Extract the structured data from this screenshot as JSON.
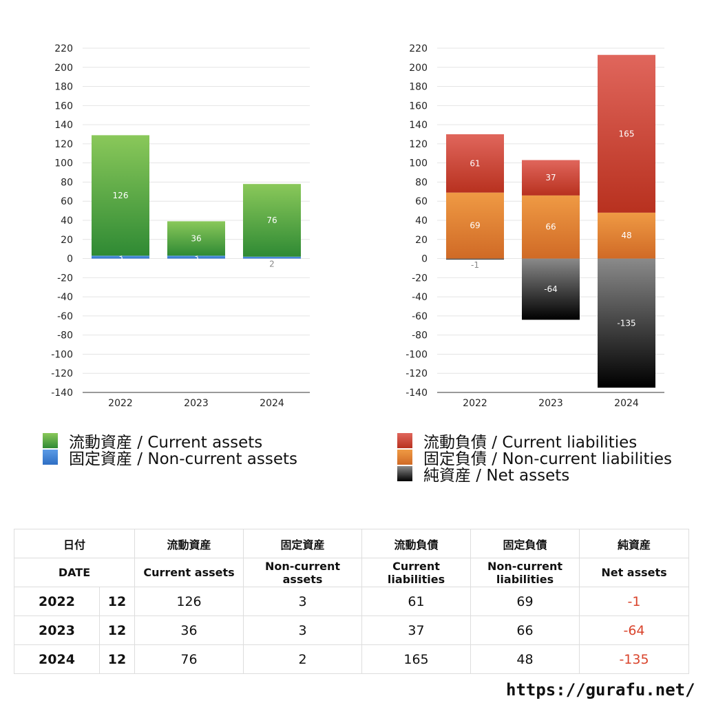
{
  "chart_data": [
    {
      "type": "bar",
      "stacked": true,
      "categories": [
        "2022",
        "2023",
        "2024"
      ],
      "ylim": [
        -140,
        220
      ],
      "yticks": [
        220,
        200,
        180,
        160,
        140,
        120,
        100,
        80,
        60,
        40,
        20,
        0,
        -20,
        -40,
        -60,
        -80,
        -100,
        -120,
        -140
      ],
      "grid": true,
      "legend_position": "bottom",
      "series": [
        {
          "name": "固定資産 / Non-current assets",
          "values": [
            3,
            3,
            2
          ],
          "color_top": "#5b9be6",
          "color_bottom": "#2f6fc4"
        },
        {
          "name": "流動資産 / Current assets",
          "values": [
            126,
            36,
            76
          ],
          "color_top": "#8ac85a",
          "color_bottom": "#2f8a34"
        }
      ]
    },
    {
      "type": "bar",
      "stacked": true,
      "categories": [
        "2022",
        "2023",
        "2024"
      ],
      "ylim": [
        -140,
        220
      ],
      "yticks": [
        220,
        200,
        180,
        160,
        140,
        120,
        100,
        80,
        60,
        40,
        20,
        0,
        -20,
        -40,
        -60,
        -80,
        -100,
        -120,
        -140
      ],
      "grid": true,
      "legend_position": "bottom",
      "series": [
        {
          "name": "純資産 / Net assets",
          "values": [
            -1,
            -64,
            -135
          ],
          "color_top": "#8a8a8a",
          "color_bottom": "#000000"
        },
        {
          "name": "固定負債 / Non-current liabilities",
          "values": [
            69,
            66,
            48
          ],
          "color_top": "#ef9a44",
          "color_bottom": "#d06a26"
        },
        {
          "name": "流動負債 / Current liabilities",
          "values": [
            61,
            37,
            165
          ],
          "color_top": "#e0665c",
          "color_bottom": "#b8311f"
        }
      ]
    }
  ],
  "legend_left": [
    {
      "label": "流動資産 / Current assets",
      "color_top": "#8ac85a",
      "color_bottom": "#2f8a34"
    },
    {
      "label": "固定資産 / Non-current assets",
      "color_top": "#5b9be6",
      "color_bottom": "#2f6fc4"
    }
  ],
  "legend_right": [
    {
      "label": "流動負債 / Current liabilities",
      "color_top": "#e0665c",
      "color_bottom": "#b8311f"
    },
    {
      "label": "固定負債 / Non-current liabilities",
      "color_top": "#ef9a44",
      "color_bottom": "#d06a26"
    },
    {
      "label": "純資産 / Net assets",
      "color_top": "#8a8a8a",
      "color_bottom": "#000000"
    }
  ],
  "table": {
    "date_jp": "日付",
    "date_en": "DATE",
    "columns": [
      {
        "jp": "流動資産",
        "en": "Current assets"
      },
      {
        "jp": "固定資産",
        "en": "Non-current assets"
      },
      {
        "jp": "流動負債",
        "en": "Current liabilities"
      },
      {
        "jp": "固定負債",
        "en": "Non-current liabilities"
      },
      {
        "jp": "純資産",
        "en": "Net assets"
      }
    ],
    "rows": [
      {
        "year": "2022",
        "month": "12",
        "values": [
          "126",
          "3",
          "61",
          "69",
          "-1"
        ]
      },
      {
        "year": "2023",
        "month": "12",
        "values": [
          "36",
          "3",
          "37",
          "66",
          "-64"
        ]
      },
      {
        "year": "2024",
        "month": "12",
        "values": [
          "76",
          "2",
          "165",
          "48",
          "-135"
        ]
      }
    ],
    "negative_color": "#d9432b"
  },
  "footer": {
    "url": "https://gurafu.net/"
  }
}
